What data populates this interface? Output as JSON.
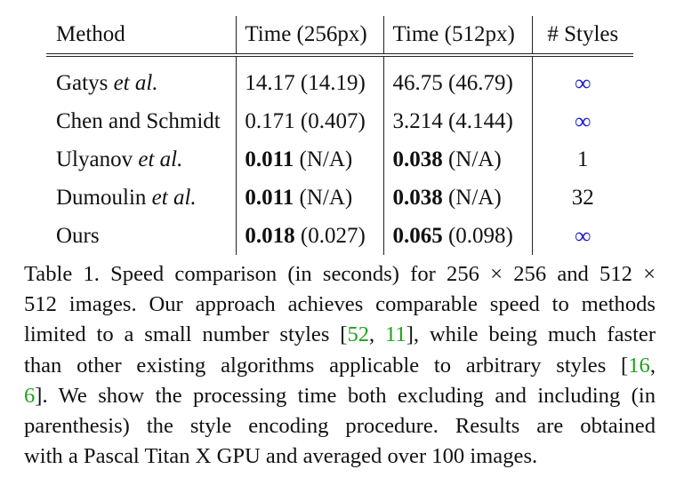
{
  "table": {
    "headers": [
      "Method",
      "Time (256px)",
      "Time (512px)",
      "# Styles"
    ],
    "rows": [
      {
        "method_main": "Gatys ",
        "method_italic": "et al.",
        "t256_main": "14.17",
        "t256_bold": "",
        "t256_paren": " (14.19)",
        "t512_main": "46.75",
        "t512_bold": "",
        "t512_paren": " (46.79)",
        "styles": "∞",
        "styles_is_infinity": true
      },
      {
        "method_main": "Chen and Schmidt",
        "method_italic": "",
        "t256_main": "0.171",
        "t256_bold": "",
        "t256_paren": " (0.407)",
        "t512_main": "3.214",
        "t512_bold": "",
        "t512_paren": " (4.144)",
        "styles": "∞",
        "styles_is_infinity": true
      },
      {
        "method_main": "Ulyanov ",
        "method_italic": "et al.",
        "t256_main": "",
        "t256_bold": "0.011",
        "t256_paren": " (N/A)",
        "t512_main": "",
        "t512_bold": "0.038",
        "t512_paren": " (N/A)",
        "styles": "1",
        "styles_is_infinity": false
      },
      {
        "method_main": "Dumoulin ",
        "method_italic": "et al.",
        "t256_main": "",
        "t256_bold": "0.011",
        "t256_paren": " (N/A)",
        "t512_main": "",
        "t512_bold": "0.038",
        "t512_paren": " (N/A)",
        "styles": "32",
        "styles_is_infinity": false
      },
      {
        "method_main": "Ours",
        "method_italic": "",
        "t256_main": "",
        "t256_bold": "0.018",
        "t256_paren": " (0.027)",
        "t512_main": "",
        "t512_bold": "0.065",
        "t512_paren": " (0.098)",
        "styles": "∞",
        "styles_is_infinity": true
      }
    ]
  },
  "caption": {
    "l1": "Table 1. Speed comparison (in seconds) for 256 × 256 and 512 ×",
    "l2": "512 images. Our approach achieves comparable speed to methods",
    "l3a": "limited to a small number styles [",
    "ref52": "52",
    "l3b": ", ",
    "ref11": "11",
    "l3c": "], while being much faster",
    "l4a": "than other existing algorithms applicable to arbitrary styles [",
    "ref16": "16",
    "l4b": ",",
    "ref6": "6",
    "l5": "]. We show the processing time both excluding and including (in",
    "l6": "parenthesis) the style encoding procedure.  Results are obtained",
    "l7": "with a Pascal Titan X GPU and averaged over 100 images."
  },
  "colors": {
    "infinity": "#1f1fd0",
    "citation": "#1ea21e",
    "text": "#111111"
  }
}
